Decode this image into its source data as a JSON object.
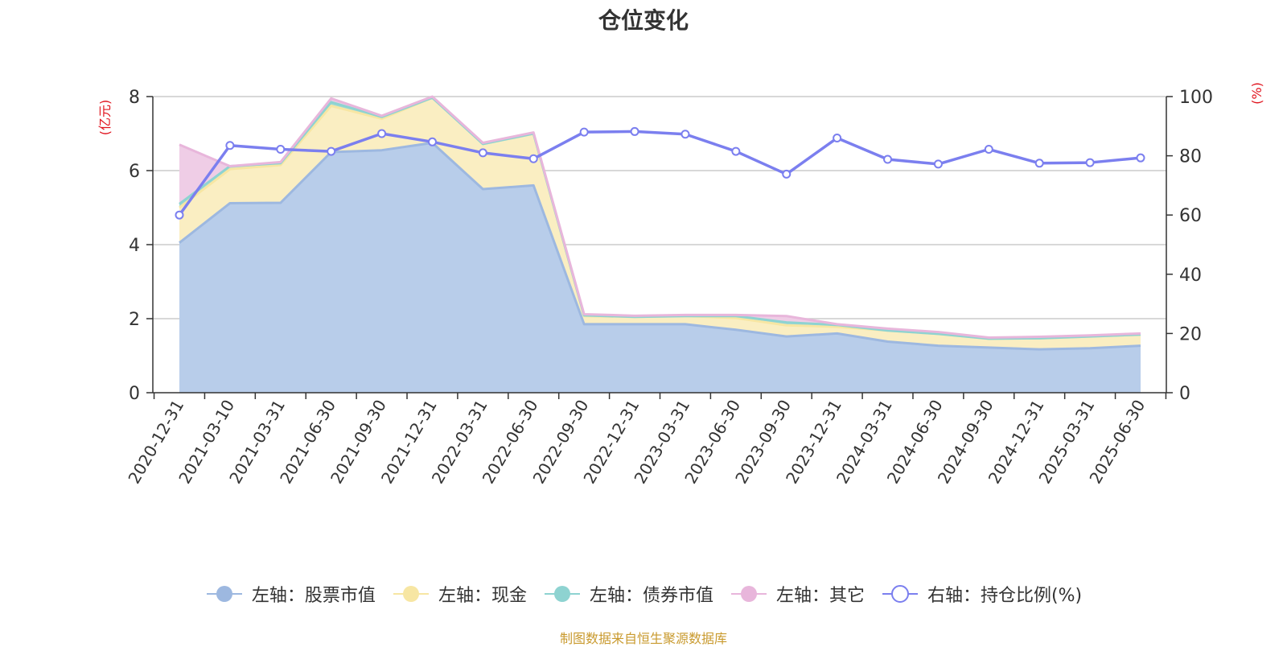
{
  "title": "仓位变化",
  "source_note": "制图数据来自恒生聚源数据库",
  "chart_data": {
    "type": "area",
    "x": [
      "2020-12-31",
      "2021-03-10",
      "2021-03-31",
      "2021-06-30",
      "2021-09-30",
      "2021-12-31",
      "2022-03-31",
      "2022-06-30",
      "2022-09-30",
      "2022-12-31",
      "2023-03-31",
      "2023-06-30",
      "2023-09-30",
      "2023-12-31",
      "2024-03-31",
      "2024-06-30",
      "2024-09-30",
      "2024-12-31",
      "2025-03-31",
      "2025-06-30"
    ],
    "y_left": {
      "label": "(亿元)",
      "ylim": [
        0,
        8
      ],
      "ticks": [
        0,
        2,
        4,
        6,
        8
      ]
    },
    "y_right": {
      "label": "(%)",
      "ylim": [
        0,
        100
      ],
      "ticks": [
        0,
        20,
        40,
        60,
        80,
        100
      ]
    },
    "grid": true,
    "legend_position": "bottom",
    "series": [
      {
        "name": "左轴：股票市值",
        "axis": "left",
        "type": "area",
        "stack": true,
        "color": "#9db8e0",
        "fill": "#b8cdea",
        "values": [
          4.05,
          5.12,
          5.13,
          6.5,
          6.55,
          6.75,
          5.5,
          5.6,
          1.85,
          1.85,
          1.85,
          1.7,
          1.52,
          1.6,
          1.38,
          1.27,
          1.22,
          1.17,
          1.2,
          1.27
        ]
      },
      {
        "name": "左轴：现金",
        "axis": "left",
        "type": "area",
        "stack": true,
        "color": "#f7e6a3",
        "fill": "#faeec2",
        "values": [
          0.95,
          0.92,
          1.02,
          1.25,
          0.85,
          1.22,
          1.22,
          1.4,
          0.22,
          0.2,
          0.22,
          0.32,
          0.3,
          0.18,
          0.3,
          0.32,
          0.24,
          0.3,
          0.32,
          0.3
        ]
      },
      {
        "name": "左轴：债券市值",
        "axis": "left",
        "type": "area",
        "stack": true,
        "color": "#8ed3d1",
        "fill": "#9fd9d5",
        "values": [
          0.1,
          0.08,
          0.05,
          0.1,
          0.05,
          0.0,
          0.0,
          0.0,
          0.02,
          0.0,
          0.0,
          0.05,
          0.08,
          0.05,
          0.0,
          0.0,
          0.0,
          0.0,
          0.0,
          0.0
        ]
      },
      {
        "name": "左轴：其它",
        "axis": "left",
        "type": "area",
        "stack": true,
        "color": "#e8b6db",
        "fill": "#efcde6",
        "values": [
          1.6,
          0.0,
          0.03,
          0.1,
          0.03,
          0.03,
          0.03,
          0.03,
          0.03,
          0.03,
          0.03,
          0.03,
          0.17,
          0.02,
          0.05,
          0.05,
          0.03,
          0.04,
          0.03,
          0.03
        ]
      },
      {
        "name": "右轴：持仓比例(%)",
        "axis": "right",
        "type": "line",
        "color": "#7b7fef",
        "values": [
          60,
          83.5,
          82.2,
          81.5,
          87.5,
          84.7,
          81,
          79,
          88,
          88.2,
          87.3,
          81.5,
          73.8,
          86,
          78.8,
          77.2,
          82.2,
          77.5,
          77.7,
          79.3
        ]
      }
    ]
  }
}
